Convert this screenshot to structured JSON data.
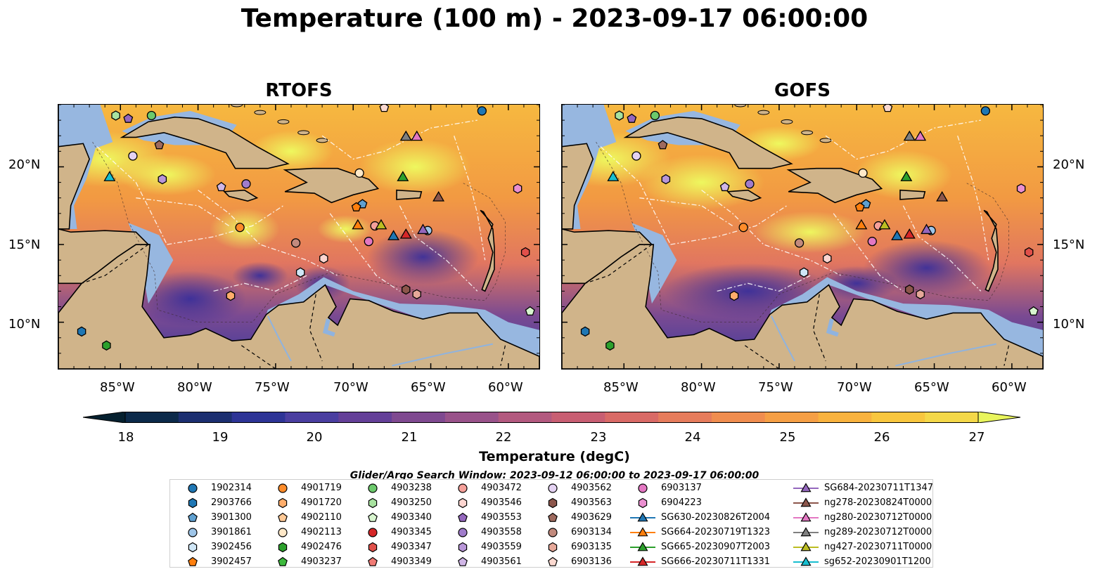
{
  "title": "Temperature (100 m) - 2023-09-17 06:00:00",
  "panels": [
    {
      "title": "RTOFS"
    },
    {
      "title": "GOFS"
    }
  ],
  "lon_ticks": [
    "85°W",
    "80°W",
    "75°W",
    "70°W",
    "65°W",
    "60°W"
  ],
  "lat_ticks": [
    "20°N",
    "15°N",
    "10°N"
  ],
  "map_extent": {
    "lon": [
      -89,
      -58
    ],
    "lat": [
      7,
      24
    ]
  },
  "colorbar": {
    "label": "Temperature (degC)",
    "ticks": [
      "18",
      "19",
      "20",
      "21",
      "22",
      "23",
      "24",
      "25",
      "26",
      "27"
    ],
    "range": [
      18,
      27
    ],
    "colors": [
      "#05202f",
      "#0c2a4a",
      "#1c2f70",
      "#2d3496",
      "#4a3ea0",
      "#643f98",
      "#7f4990",
      "#99528a",
      "#b3597f",
      "#c85e72",
      "#d96a66",
      "#e67c5c",
      "#f08d4f",
      "#f59f45",
      "#f8b23e",
      "#f8c63e",
      "#f4d849",
      "#e9f55c"
    ]
  },
  "search_window": "Glider/Argo Search Window: 2023-09-12 06:00:00 to 2023-09-17 06:00:00",
  "legend": [
    {
      "label": "1902314",
      "marker": "circle",
      "color": "#1f77b4"
    },
    {
      "label": "2903766",
      "marker": "hexagon",
      "color": "#1f77b4"
    },
    {
      "label": "3901300",
      "marker": "pentagon",
      "color": "#5fa0d0"
    },
    {
      "label": "3901861",
      "marker": "circle",
      "color": "#9ec5e8"
    },
    {
      "label": "3902456",
      "marker": "hexagon",
      "color": "#cfe6f6"
    },
    {
      "label": "3902457",
      "marker": "pentagon",
      "color": "#ff7f0e"
    },
    {
      "label": "4901719",
      "marker": "circle",
      "color": "#ff8c2a"
    },
    {
      "label": "4901720",
      "marker": "hexagon",
      "color": "#ffad6b"
    },
    {
      "label": "4902110",
      "marker": "pentagon",
      "color": "#ffc996"
    },
    {
      "label": "4902113",
      "marker": "circle",
      "color": "#ffe8c8"
    },
    {
      "label": "4902476",
      "marker": "hexagon",
      "color": "#2ca02c"
    },
    {
      "label": "4903237",
      "marker": "pentagon",
      "color": "#3cb93c"
    },
    {
      "label": "4903238",
      "marker": "circle",
      "color": "#6cc96c"
    },
    {
      "label": "4903250",
      "marker": "hexagon",
      "color": "#a8e2a0"
    },
    {
      "label": "4903340",
      "marker": "pentagon",
      "color": "#d8f5cf"
    },
    {
      "label": "4903345",
      "marker": "circle",
      "color": "#d62728"
    },
    {
      "label": "4903347",
      "marker": "hexagon",
      "color": "#e0504a"
    },
    {
      "label": "4903349",
      "marker": "pentagon",
      "color": "#f07a74"
    },
    {
      "label": "4903472",
      "marker": "circle",
      "color": "#f5a09a"
    },
    {
      "label": "4903546",
      "marker": "hexagon",
      "color": "#fcd5d0"
    },
    {
      "label": "4903553",
      "marker": "pentagon",
      "color": "#9467bd"
    },
    {
      "label": "4903558",
      "marker": "circle",
      "color": "#a07ccb"
    },
    {
      "label": "4903559",
      "marker": "hexagon",
      "color": "#b896d8"
    },
    {
      "label": "4903561",
      "marker": "pentagon",
      "color": "#d0b6e6"
    },
    {
      "label": "4903562",
      "marker": "circle",
      "color": "#e4d2f2"
    },
    {
      "label": "4903563",
      "marker": "hexagon",
      "color": "#8c564b"
    },
    {
      "label": "4903629",
      "marker": "pentagon",
      "color": "#9e6a5e"
    },
    {
      "label": "6903134",
      "marker": "circle",
      "color": "#c28a7d"
    },
    {
      "label": "6903135",
      "marker": "hexagon",
      "color": "#e6a899"
    },
    {
      "label": "6903136",
      "marker": "pentagon",
      "color": "#fbd9d0"
    },
    {
      "label": "6903137",
      "marker": "circle",
      "color": "#e377c2"
    },
    {
      "label": "6904223",
      "marker": "hexagon",
      "color": "#ea8fd0"
    },
    {
      "label": "SG630-20230826T2004",
      "marker": "triangle",
      "color": "#1f77b4",
      "line": true
    },
    {
      "label": "SG664-20230719T1323",
      "marker": "triangle",
      "color": "#ff7f0e",
      "line": true
    },
    {
      "label": "SG665-20230907T2003",
      "marker": "triangle",
      "color": "#2ca02c",
      "line": true
    },
    {
      "label": "SG666-20230711T1331",
      "marker": "triangle",
      "color": "#d62728",
      "line": true
    },
    {
      "label": "SG684-20230711T1347",
      "marker": "triangle",
      "color": "#9467bd",
      "line": true
    },
    {
      "label": "ng278-20230824T0000",
      "marker": "triangle",
      "color": "#8c564b",
      "line": true
    },
    {
      "label": "ng280-20230712T0000",
      "marker": "triangle",
      "color": "#e377c2",
      "line": true
    },
    {
      "label": "ng289-20230712T0000",
      "marker": "triangle",
      "color": "#7f7f7f",
      "line": true
    },
    {
      "label": "ng427-20230711T0000",
      "marker": "triangle",
      "color": "#bcbd22",
      "line": true
    },
    {
      "label": "sg652-20230901T1200",
      "marker": "triangle",
      "color": "#17becf",
      "line": true
    }
  ],
  "platforms": [
    {
      "id": "1902314",
      "lon": -61.7,
      "lat": 23.6
    },
    {
      "id": "2903766",
      "lon": -87.5,
      "lat": 9.4
    },
    {
      "id": "3901300",
      "lon": -69.4,
      "lat": 17.6
    },
    {
      "id": "3901861",
      "lon": -65.2,
      "lat": 15.9
    },
    {
      "id": "3902457",
      "lon": -69.8,
      "lat": 17.4
    },
    {
      "id": "4901719",
      "lon": -77.3,
      "lat": 16.1
    },
    {
      "id": "4901720",
      "lon": -77.9,
      "lat": 11.7
    },
    {
      "id": "4902113",
      "lon": -69.6,
      "lat": 19.6
    },
    {
      "id": "4902476",
      "lon": -85.9,
      "lat": 8.5
    },
    {
      "id": "4903238",
      "lon": -83.0,
      "lat": 23.3
    },
    {
      "id": "4903250",
      "lon": -85.3,
      "lat": 23.3
    },
    {
      "id": "4903340",
      "lon": -58.6,
      "lat": 10.7
    },
    {
      "id": "4903347",
      "lon": -58.9,
      "lat": 14.5
    },
    {
      "id": "4903472",
      "lon": -68.6,
      "lat": 16.2
    },
    {
      "id": "4903546",
      "lon": -71.9,
      "lat": 14.1
    },
    {
      "id": "4903553",
      "lon": -84.5,
      "lat": 23.1
    },
    {
      "id": "4903558",
      "lon": -76.9,
      "lat": 18.9
    },
    {
      "id": "4903559",
      "lon": -82.3,
      "lat": 19.2
    },
    {
      "id": "4903561",
      "lon": -78.5,
      "lat": 18.7
    },
    {
      "id": "4903562",
      "lon": -84.2,
      "lat": 20.7
    },
    {
      "id": "4903563",
      "lon": -66.6,
      "lat": 12.1
    },
    {
      "id": "4903629",
      "lon": -82.5,
      "lat": 21.4
    },
    {
      "id": "6903134",
      "lon": -73.7,
      "lat": 15.1
    },
    {
      "id": "6903135",
      "lon": -65.9,
      "lat": 11.8
    },
    {
      "id": "6903136",
      "lon": -68.0,
      "lat": 23.8
    },
    {
      "id": "6903137",
      "lon": -69.0,
      "lat": 15.2
    },
    {
      "id": "6904223",
      "lon": -59.4,
      "lat": 18.6
    },
    {
      "id": "3902456",
      "lon": -73.4,
      "lat": 13.2
    }
  ],
  "gliders": [
    {
      "id": "SG630-20230826T2004",
      "lon": -67.4,
      "lat": 15.5
    },
    {
      "id": "SG664-20230719T1323",
      "lon": -69.7,
      "lat": 16.2
    },
    {
      "id": "SG665-20230907T2003",
      "lon": -66.8,
      "lat": 19.3
    },
    {
      "id": "SG666-20230711T1331",
      "lon": -66.6,
      "lat": 15.6
    },
    {
      "id": "SG684-20230711T1347",
      "lon": -65.5,
      "lat": 15.9
    },
    {
      "id": "ng278-20230824T0000",
      "lon": -64.5,
      "lat": 18.0
    },
    {
      "id": "ng280-20230712T0000",
      "lon": -65.9,
      "lat": 21.9
    },
    {
      "id": "ng289-20230712T0000",
      "lon": -66.6,
      "lat": 21.9
    },
    {
      "id": "ng427-20230711T0000",
      "lon": -68.2,
      "lat": 16.2
    },
    {
      "id": "sg652-20230901T1200",
      "lon": -85.7,
      "lat": 19.3
    }
  ]
}
